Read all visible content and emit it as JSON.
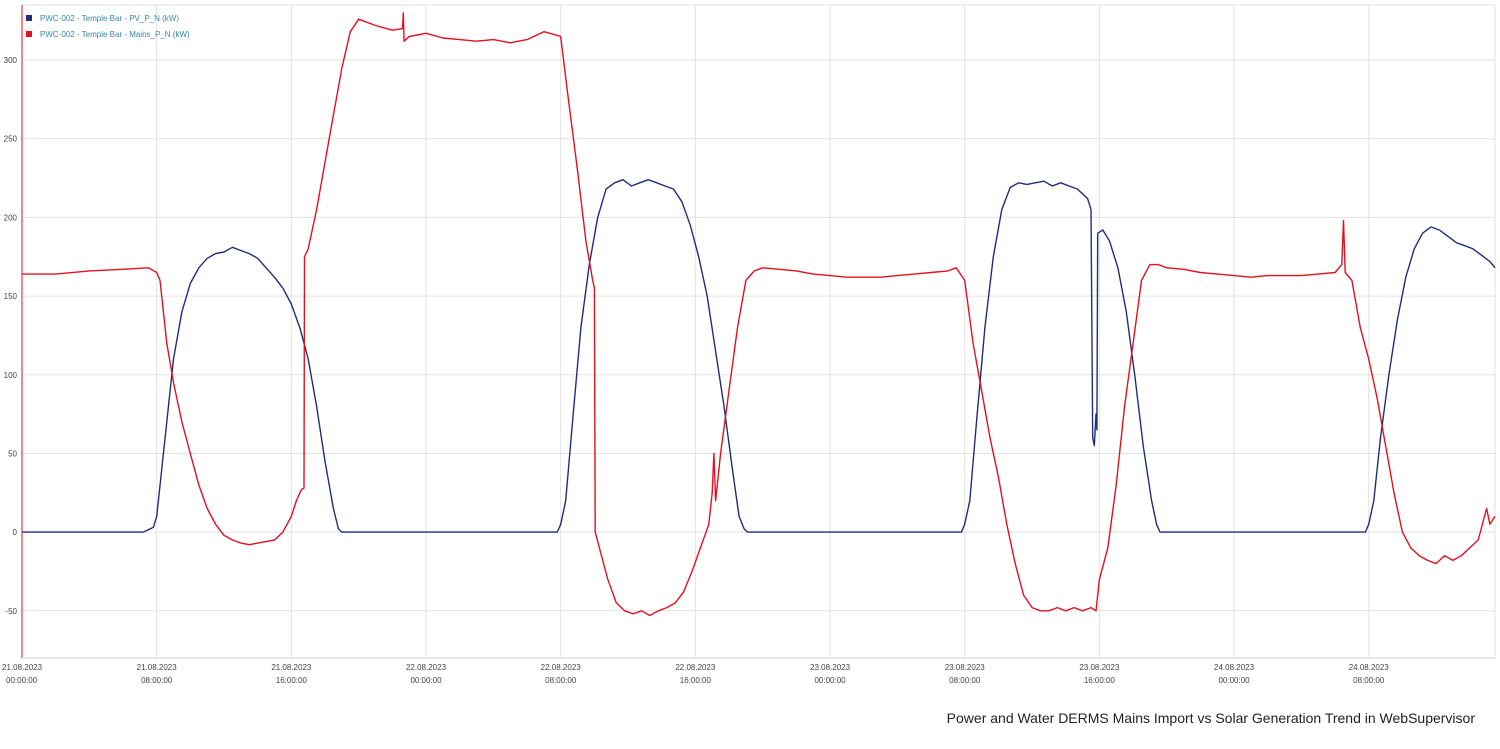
{
  "colors": {
    "pv": "#1f2d7a",
    "mains": "#e3101f",
    "grid": "#e2e2e2",
    "axis_text": "#444444"
  },
  "caption": "Power and Water DERMS Mains Import vs Solar Generation Trend in WebSupervisor",
  "chart_data": {
    "type": "line",
    "title": "",
    "xlabel": "",
    "ylabel": "",
    "x_unit": "hours since 21.08.2023 00:00:00",
    "xlim": [
      0,
      87.5
    ],
    "ylim": [
      -80,
      335
    ],
    "y_ticks": [
      -50,
      0,
      50,
      100,
      150,
      200,
      250,
      300
    ],
    "x_ticks": [
      {
        "x": 0,
        "date": "21.08.2023",
        "time": "00:00:00"
      },
      {
        "x": 8,
        "date": "21.08.2023",
        "time": "08:00:00"
      },
      {
        "x": 16,
        "date": "21.08.2023",
        "time": "16:00:00"
      },
      {
        "x": 24,
        "date": "22.08.2023",
        "time": "00:00:00"
      },
      {
        "x": 32,
        "date": "22.08.2023",
        "time": "08:00:00"
      },
      {
        "x": 40,
        "date": "22.08.2023",
        "time": "16:00:00"
      },
      {
        "x": 48,
        "date": "23.08.2023",
        "time": "00:00:00"
      },
      {
        "x": 56,
        "date": "23.08.2023",
        "time": "08:00:00"
      },
      {
        "x": 64,
        "date": "23.08.2023",
        "time": "16:00:00"
      },
      {
        "x": 72,
        "date": "24.08.2023",
        "time": "00:00:00"
      },
      {
        "x": 80,
        "date": "24.08.2023",
        "time": "08:00:00"
      }
    ],
    "grid": true,
    "legend": "top-left",
    "series": [
      {
        "name": "PWC-002 - Temple Bar - PV_P_N (kW)",
        "color": "#1f2d7a",
        "points": [
          [
            0,
            0
          ],
          [
            7.2,
            0
          ],
          [
            7.8,
            3
          ],
          [
            8.0,
            10
          ],
          [
            8.5,
            60
          ],
          [
            9,
            110
          ],
          [
            9.5,
            140
          ],
          [
            10,
            158
          ],
          [
            10.5,
            168
          ],
          [
            11,
            174
          ],
          [
            11.5,
            177
          ],
          [
            12,
            178
          ],
          [
            12.5,
            181
          ],
          [
            13,
            179
          ],
          [
            13.5,
            177
          ],
          [
            14,
            174
          ],
          [
            14.5,
            168
          ],
          [
            15,
            162
          ],
          [
            15.5,
            155
          ],
          [
            16,
            145
          ],
          [
            16.5,
            130
          ],
          [
            17,
            110
          ],
          [
            17.5,
            80
          ],
          [
            18,
            45
          ],
          [
            18.5,
            15
          ],
          [
            18.8,
            2
          ],
          [
            19,
            0
          ],
          [
            31.8,
            0
          ],
          [
            32,
            5
          ],
          [
            32.3,
            20
          ],
          [
            32.7,
            70
          ],
          [
            33.2,
            130
          ],
          [
            33.7,
            170
          ],
          [
            34.2,
            200
          ],
          [
            34.7,
            218
          ],
          [
            35.2,
            222
          ],
          [
            35.7,
            224
          ],
          [
            36.2,
            220
          ],
          [
            36.7,
            222
          ],
          [
            37.2,
            224
          ],
          [
            37.7,
            222
          ],
          [
            38.2,
            220
          ],
          [
            38.7,
            218
          ],
          [
            39.2,
            210
          ],
          [
            39.7,
            195
          ],
          [
            40.2,
            175
          ],
          [
            40.7,
            150
          ],
          [
            41.2,
            115
          ],
          [
            41.7,
            80
          ],
          [
            42.2,
            40
          ],
          [
            42.6,
            10
          ],
          [
            42.9,
            2
          ],
          [
            43.1,
            0
          ],
          [
            55.8,
            0
          ],
          [
            56,
            5
          ],
          [
            56.3,
            20
          ],
          [
            56.7,
            70
          ],
          [
            57.2,
            130
          ],
          [
            57.7,
            175
          ],
          [
            58.2,
            205
          ],
          [
            58.7,
            219
          ],
          [
            59.2,
            222
          ],
          [
            59.7,
            221
          ],
          [
            60.2,
            222
          ],
          [
            60.7,
            223
          ],
          [
            61.2,
            220
          ],
          [
            61.7,
            222
          ],
          [
            62.2,
            220
          ],
          [
            62.7,
            218
          ],
          [
            63.0,
            215
          ],
          [
            63.3,
            212
          ],
          [
            63.5,
            205
          ],
          [
            63.6,
            60
          ],
          [
            63.7,
            55
          ],
          [
            63.8,
            75
          ],
          [
            63.85,
            65
          ],
          [
            63.9,
            190
          ],
          [
            64.2,
            192
          ],
          [
            64.6,
            185
          ],
          [
            65.1,
            168
          ],
          [
            65.6,
            140
          ],
          [
            66.1,
            100
          ],
          [
            66.6,
            55
          ],
          [
            67.1,
            20
          ],
          [
            67.4,
            5
          ],
          [
            67.6,
            0
          ],
          [
            79.8,
            0
          ],
          [
            80,
            5
          ],
          [
            80.3,
            20
          ],
          [
            80.7,
            60
          ],
          [
            81.2,
            100
          ],
          [
            81.7,
            135
          ],
          [
            82.2,
            162
          ],
          [
            82.7,
            180
          ],
          [
            83.2,
            190
          ],
          [
            83.7,
            194
          ],
          [
            84.2,
            192
          ],
          [
            84.7,
            188
          ],
          [
            85.2,
            184
          ],
          [
            85.7,
            182
          ],
          [
            86.2,
            180
          ],
          [
            86.7,
            176
          ],
          [
            87.2,
            172
          ],
          [
            87.5,
            168
          ]
        ]
      },
      {
        "name": "PWC-002 - Temple Bar - Mains_P_N (kW)",
        "color": "#e3101f",
        "points": [
          [
            0,
            164
          ],
          [
            2,
            164
          ],
          [
            4,
            166
          ],
          [
            6,
            167
          ],
          [
            7.5,
            168
          ],
          [
            8,
            165
          ],
          [
            8.2,
            160
          ],
          [
            8.6,
            120
          ],
          [
            9,
            95
          ],
          [
            9.5,
            70
          ],
          [
            10,
            50
          ],
          [
            10.5,
            30
          ],
          [
            11,
            15
          ],
          [
            11.5,
            5
          ],
          [
            12,
            -2
          ],
          [
            12.5,
            -5
          ],
          [
            13,
            -7
          ],
          [
            13.5,
            -8
          ],
          [
            14,
            -7
          ],
          [
            14.5,
            -6
          ],
          [
            15,
            -5
          ],
          [
            15.5,
            0
          ],
          [
            16,
            10
          ],
          [
            16.3,
            20
          ],
          [
            16.6,
            27
          ],
          [
            16.75,
            28
          ],
          [
            16.78,
            175
          ],
          [
            17,
            180
          ],
          [
            17.5,
            205
          ],
          [
            18,
            235
          ],
          [
            18.5,
            265
          ],
          [
            19,
            295
          ],
          [
            19.5,
            318
          ],
          [
            20,
            326
          ],
          [
            21,
            322
          ],
          [
            22,
            319
          ],
          [
            22.6,
            320
          ],
          [
            22.65,
            330
          ],
          [
            22.7,
            312
          ],
          [
            23,
            315
          ],
          [
            24,
            317
          ],
          [
            25,
            314
          ],
          [
            26,
            313
          ],
          [
            27,
            312
          ],
          [
            28,
            313
          ],
          [
            29,
            311
          ],
          [
            30,
            313
          ],
          [
            31,
            318
          ],
          [
            31.7,
            316
          ],
          [
            32,
            315
          ],
          [
            32.4,
            280
          ],
          [
            33,
            230
          ],
          [
            33.5,
            185
          ],
          [
            33.9,
            160
          ],
          [
            34.0,
            155
          ],
          [
            34.05,
            0
          ],
          [
            34.3,
            -10
          ],
          [
            34.8,
            -30
          ],
          [
            35.3,
            -45
          ],
          [
            35.8,
            -50
          ],
          [
            36.3,
            -52
          ],
          [
            36.8,
            -50
          ],
          [
            37.3,
            -53
          ],
          [
            37.8,
            -50
          ],
          [
            38.3,
            -48
          ],
          [
            38.8,
            -45
          ],
          [
            39.3,
            -38
          ],
          [
            39.8,
            -25
          ],
          [
            40.3,
            -10
          ],
          [
            40.8,
            5
          ],
          [
            41,
            25
          ],
          [
            41.1,
            50
          ],
          [
            41.2,
            20
          ],
          [
            41.5,
            50
          ],
          [
            42,
            90
          ],
          [
            42.5,
            130
          ],
          [
            43,
            160
          ],
          [
            43.5,
            166
          ],
          [
            44,
            168
          ],
          [
            45,
            167
          ],
          [
            46,
            166
          ],
          [
            47,
            164
          ],
          [
            48,
            163
          ],
          [
            49,
            162
          ],
          [
            50,
            162
          ],
          [
            51,
            162
          ],
          [
            52,
            163
          ],
          [
            53,
            164
          ],
          [
            54,
            165
          ],
          [
            55,
            166
          ],
          [
            55.5,
            168
          ],
          [
            56,
            160
          ],
          [
            56.5,
            120
          ],
          [
            57,
            90
          ],
          [
            57.5,
            60
          ],
          [
            58,
            35
          ],
          [
            58.5,
            5
          ],
          [
            59,
            -20
          ],
          [
            59.5,
            -40
          ],
          [
            60,
            -48
          ],
          [
            60.5,
            -50
          ],
          [
            61,
            -50
          ],
          [
            61.5,
            -48
          ],
          [
            62,
            -50
          ],
          [
            62.5,
            -48
          ],
          [
            63,
            -50
          ],
          [
            63.5,
            -48
          ],
          [
            63.8,
            -50
          ],
          [
            64,
            -30
          ],
          [
            64.5,
            -10
          ],
          [
            65,
            30
          ],
          [
            65.5,
            80
          ],
          [
            66,
            120
          ],
          [
            66.5,
            160
          ],
          [
            67,
            170
          ],
          [
            67.5,
            170
          ],
          [
            68,
            168
          ],
          [
            69,
            167
          ],
          [
            70,
            165
          ],
          [
            71,
            164
          ],
          [
            72,
            163
          ],
          [
            73,
            162
          ],
          [
            74,
            163
          ],
          [
            75,
            163
          ],
          [
            76,
            163
          ],
          [
            77,
            164
          ],
          [
            78,
            165
          ],
          [
            78.4,
            170
          ],
          [
            78.5,
            198
          ],
          [
            78.6,
            165
          ],
          [
            79,
            160
          ],
          [
            79.5,
            130
          ],
          [
            80,
            110
          ],
          [
            80.5,
            85
          ],
          [
            81,
            55
          ],
          [
            81.5,
            25
          ],
          [
            82,
            0
          ],
          [
            82.5,
            -10
          ],
          [
            83,
            -15
          ],
          [
            83.5,
            -18
          ],
          [
            84,
            -20
          ],
          [
            84.5,
            -15
          ],
          [
            85,
            -18
          ],
          [
            85.5,
            -15
          ],
          [
            86,
            -10
          ],
          [
            86.5,
            -5
          ],
          [
            87,
            15
          ],
          [
            87.2,
            5
          ],
          [
            87.5,
            10
          ]
        ]
      }
    ]
  }
}
